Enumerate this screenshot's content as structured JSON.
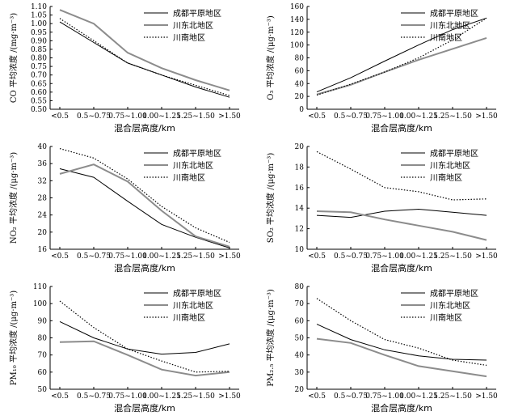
{
  "chart_data": [
    {
      "type": "line",
      "ylabel": "CO 平均浓度 /(mg·m⁻³)",
      "xlabel": "混合层高度/km",
      "ylim": [
        0.5,
        1.1
      ],
      "yticks": [
        "0.50",
        "0.55",
        "0.60",
        "0.65",
        "0.70",
        "0.75",
        "0.80",
        "0.85",
        "0.90",
        "0.95",
        "1.00",
        "1.05",
        "1.10"
      ],
      "categories": [
        "<0.5",
        "0.5~0.75",
        "0.75~1.00",
        "1.00~1.25",
        "1.25~1.50",
        ">1.50"
      ],
      "legend_position": "top-right",
      "series": [
        {
          "name": "成都平原地区",
          "style": "black",
          "values": [
            1.01,
            0.89,
            0.77,
            0.7,
            0.63,
            0.57
          ]
        },
        {
          "name": "川东北地区",
          "style": "gray",
          "values": [
            1.08,
            1.0,
            0.83,
            0.74,
            0.67,
            0.61
          ]
        },
        {
          "name": "川南地区",
          "style": "dotted",
          "values": [
            1.03,
            0.9,
            0.77,
            0.7,
            0.64,
            0.58
          ]
        }
      ]
    },
    {
      "type": "line",
      "ylabel": "O₃ 平均浓度 /(μg·m⁻³)",
      "xlabel": "混合层高度/km",
      "ylim": [
        0,
        160
      ],
      "yticks": [
        "0",
        "20",
        "40",
        "60",
        "80",
        "100",
        "120",
        "140",
        "160"
      ],
      "categories": [
        "<0.5",
        "0.5~0.75",
        "0.75~1.00",
        "1.00~1.25",
        "1.25~1.50",
        ">1.50"
      ],
      "legend_position": "top-left",
      "series": [
        {
          "name": "成都平原地区",
          "style": "black",
          "values": [
            27,
            49,
            75,
            100,
            124,
            142
          ]
        },
        {
          "name": "川东北地区",
          "style": "gray",
          "values": [
            23,
            38,
            58,
            77,
            94,
            111
          ]
        },
        {
          "name": "川南地区",
          "style": "dotted",
          "values": [
            22,
            39,
            58,
            80,
            108,
            142
          ]
        }
      ]
    },
    {
      "type": "line",
      "ylabel": "NO₂ 平均浓度 /(μg·m⁻³)",
      "xlabel": "混合层高度/km",
      "ylim": [
        16,
        40
      ],
      "yticks": [
        "16",
        "20",
        "24",
        "28",
        "32",
        "36",
        "40"
      ],
      "categories": [
        "<0.5",
        "0.5~0.75",
        "0.75~1.00",
        "1.00~1.25",
        "1.25~1.50",
        ">1.50"
      ],
      "legend_position": "top-right",
      "series": [
        {
          "name": "成都平原地区",
          "style": "black",
          "values": [
            34.8,
            32.8,
            27.2,
            21.8,
            18.8,
            16.3
          ]
        },
        {
          "name": "川东北地区",
          "style": "gray",
          "values": [
            33.6,
            35.8,
            31.8,
            25.0,
            19.0,
            16.6
          ]
        },
        {
          "name": "川南地区",
          "style": "dotted",
          "values": [
            39.5,
            37.3,
            32.4,
            26.0,
            21.0,
            17.6
          ]
        }
      ]
    },
    {
      "type": "line",
      "ylabel": "SO₂ 平均浓度 /(μg·m⁻³)",
      "xlabel": "混合层高度/km",
      "ylim": [
        10,
        20
      ],
      "yticks": [
        "10",
        "12",
        "14",
        "16",
        "18",
        "20"
      ],
      "categories": [
        "<0.5",
        "0.5~0.75",
        "0.75~1.00",
        "1.00~1.25",
        "1.25~1.50",
        ">1.50"
      ],
      "legend_position": "top-right",
      "series": [
        {
          "name": "成都平原地区",
          "style": "black",
          "values": [
            13.3,
            13.1,
            13.7,
            13.9,
            13.6,
            13.3
          ]
        },
        {
          "name": "川东北地区",
          "style": "gray",
          "values": [
            13.7,
            13.6,
            12.9,
            12.3,
            11.7,
            10.9
          ]
        },
        {
          "name": "川南地区",
          "style": "dotted",
          "values": [
            19.5,
            17.8,
            16.0,
            15.6,
            14.8,
            14.9
          ]
        }
      ]
    },
    {
      "type": "line",
      "ylabel": "PM₁₀ 平均浓度 /(μg·m⁻³)",
      "xlabel": "混合层高度/km",
      "ylim": [
        50,
        110
      ],
      "yticks": [
        "50",
        "60",
        "70",
        "80",
        "90",
        "100",
        "110"
      ],
      "categories": [
        "<0.5",
        "0.5~0.75",
        "0.75~1.00",
        "1.00~1.25",
        "1.25~1.50",
        ">1.50"
      ],
      "legend_position": "top-right",
      "series": [
        {
          "name": "成都平原地区",
          "style": "black",
          "values": [
            89.5,
            80.0,
            73.5,
            70.5,
            71.5,
            76.5
          ]
        },
        {
          "name": "川东北地区",
          "style": "gray",
          "values": [
            77.5,
            78.0,
            70.0,
            61.5,
            58.0,
            60.0
          ]
        },
        {
          "name": "川南地区",
          "style": "dotted",
          "values": [
            101.5,
            86.0,
            73.5,
            66.5,
            60.0,
            60.5
          ]
        }
      ]
    },
    {
      "type": "line",
      "ylabel": "PM₂.₅ 平均浓度 /(μg·m⁻³)",
      "xlabel": "混合层高度/km",
      "ylim": [
        20,
        80
      ],
      "yticks": [
        "20",
        "30",
        "40",
        "50",
        "60",
        "70",
        "80"
      ],
      "categories": [
        "<0.5",
        "0.5~0.75",
        "0.75~1.00",
        "1.00~1.25",
        "1.25~1.50",
        ">1.50"
      ],
      "legend_position": "top-right",
      "series": [
        {
          "name": "成都平原地区",
          "style": "black",
          "values": [
            58.0,
            49.0,
            43.0,
            39.5,
            37.5,
            37.0
          ]
        },
        {
          "name": "川东北地区",
          "style": "gray",
          "values": [
            49.5,
            47.0,
            40.0,
            33.5,
            30.5,
            27.5
          ]
        },
        {
          "name": "川南地区",
          "style": "dotted",
          "values": [
            73.0,
            60.0,
            49.0,
            44.0,
            37.0,
            34.0
          ]
        }
      ]
    }
  ],
  "colors": {
    "black": "#000000",
    "gray": "#8c8c8c",
    "axis": "#000000"
  }
}
